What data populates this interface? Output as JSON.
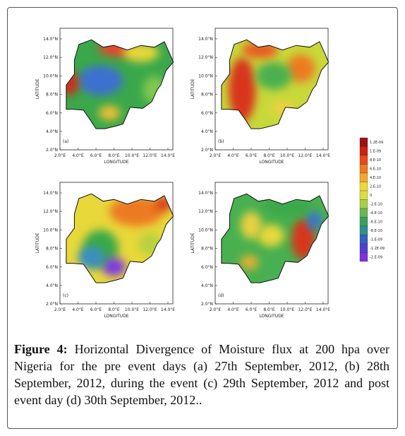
{
  "panels": [
    {
      "label": "(a)",
      "lat_ticks": [
        "14.0°N",
        "12.0°N",
        "10.0°N",
        "8.0°N",
        "6.0°N",
        "4.0°N",
        "2.0°N"
      ],
      "lon_ticks": [
        "2.0°E",
        "4.0°E",
        "6.0°E",
        "8.0°E",
        "10.0°E",
        "12.0°E",
        "14.0°E"
      ],
      "x_axis_label": "LONGITUDE",
      "y_axis_label": "LATITUDE"
    },
    {
      "label": "(b)",
      "lat_ticks": [
        "14.0°N",
        "12.0°N",
        "10.0°N",
        "8.0°N",
        "6.0°N",
        "4.0°N",
        "2.0°N"
      ],
      "lon_ticks": [
        "2.0°E",
        "4.0°E",
        "6.0°E",
        "8.0°E",
        "10.0°E",
        "12.0°E",
        "14.0°E"
      ],
      "x_axis_label": "LONGITUDE",
      "y_axis_label": "LATITUDE"
    },
    {
      "label": "(c)",
      "lat_ticks": [
        "14.0°N",
        "12.0°N",
        "10.0°N",
        "8.0°N",
        "6.0°N",
        "4.0°N",
        "2.0°N"
      ],
      "lon_ticks": [
        "2.0°E",
        "4.0°E",
        "6.0°E",
        "8.0°E",
        "10.0°E",
        "12.0°E",
        "14.0°E"
      ],
      "x_axis_label": "LONGITUDE",
      "y_axis_label": "LATITUDE"
    },
    {
      "label": "(d)",
      "lat_ticks": [
        "14.0°N",
        "12.0°N",
        "10.0°N",
        "8.0°N",
        "6.0°N",
        "4.0°N",
        "2.0°N"
      ],
      "lon_ticks": [
        "2.0°E",
        "4.0°E",
        "6.0°E",
        "8.0°E",
        "10.0°E",
        "12.0°E",
        "14.0°E"
      ],
      "x_axis_label": "LONGITUDE",
      "y_axis_label": "LATITUDE"
    }
  ],
  "colorbar": {
    "labels": [
      "1.2E-09",
      "1.E-09",
      "8.E-10",
      "6.E-10",
      "4.E-10",
      "2.E-10",
      "0",
      "-2.E-10",
      "-4.E-10",
      "-6.E-10",
      "-8.E-10",
      "-1.E-09",
      "-1.2E-09",
      "-2.E-09"
    ]
  },
  "caption": {
    "label": "Figure 4:",
    "text": "Horizontal Divergence of Moisture flux at 200 hpa over Nigeria for the pre event days (a) 27th September, 2012, (b) 28th September, 2012, during the event (c) 29th September, 2012 and post event day (d) 30th September, 2012.."
  }
}
